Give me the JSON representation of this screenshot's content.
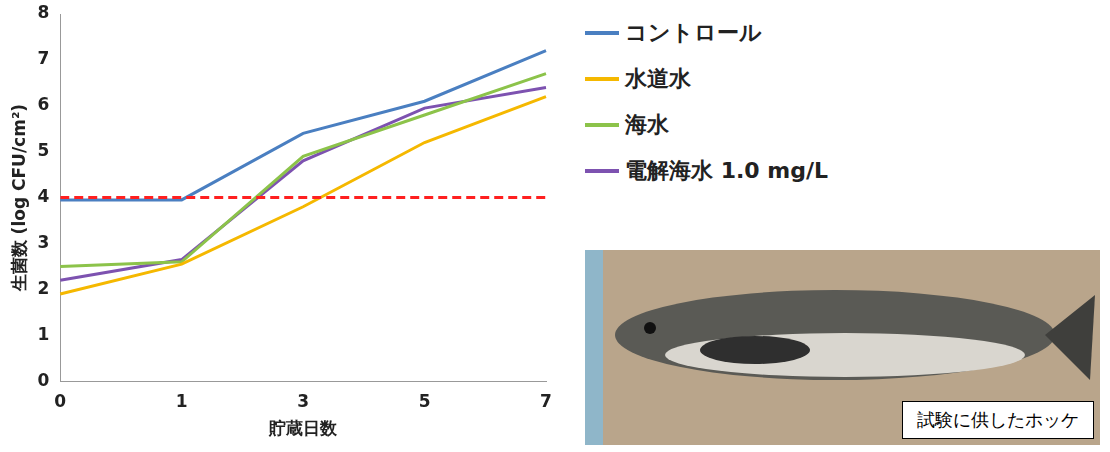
{
  "chart_data": {
    "type": "line",
    "x_label": "貯蔵日数",
    "y_label": "生菌数 (log CFU/cm²)",
    "categories": [
      "0",
      "1",
      "3",
      "5",
      "7"
    ],
    "series": [
      {
        "name": "コントロール",
        "color": "#4a7fc1",
        "values": [
          3.95,
          3.95,
          5.4,
          6.1,
          7.2
        ]
      },
      {
        "name": "水道水",
        "color": "#f5b800",
        "values": [
          1.9,
          2.55,
          3.8,
          5.2,
          6.2
        ]
      },
      {
        "name": "海水",
        "color": "#8cc34a",
        "values": [
          2.5,
          2.6,
          4.9,
          5.8,
          6.7
        ]
      },
      {
        "name": "電解海水 1.0 mg/L",
        "color": "#7d52b0",
        "values": [
          2.2,
          2.65,
          4.8,
          5.95,
          6.4
        ]
      }
    ],
    "ylim": [
      0,
      8
    ],
    "yticks": [
      0,
      1,
      2,
      3,
      4,
      5,
      6,
      7,
      8
    ],
    "grid": false,
    "legend": "right",
    "reference_line": {
      "value": 4,
      "color": "#ff2020",
      "line_style": "dashed"
    },
    "image_caption": "試験に供したホッケ"
  }
}
